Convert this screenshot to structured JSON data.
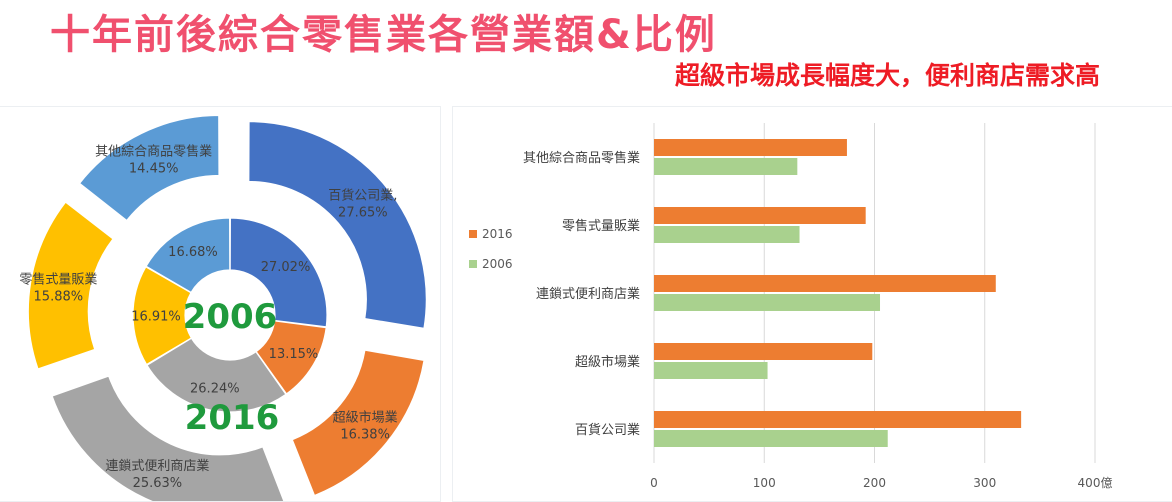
{
  "header": {
    "title": "十年前後綜合零售業各營業額&比例",
    "subtitle": "超級市場成長幅度大，便利商店需求高"
  },
  "chart_data": [
    {
      "type": "pie",
      "subtype": "double-donut",
      "inner_label": "2006",
      "outer_label": "2016",
      "rings": [
        {
          "name": "2006",
          "slices": [
            {
              "category": "百貨公司業",
              "percent": "27.02%",
              "value": 27.02,
              "color": "#4472c4"
            },
            {
              "category": "超級市場業",
              "percent": "13.15%",
              "value": 13.15,
              "color": "#ed7d31"
            },
            {
              "category": "連鎖式便利商店業",
              "percent": "26.24%",
              "value": 26.24,
              "color": "#a5a5a5"
            },
            {
              "category": "零售式量販業",
              "percent": "16.91%",
              "value": 16.91,
              "color": "#ffc000"
            },
            {
              "category": "其他綜合商品零售業",
              "percent": "16.68%",
              "value": 16.68,
              "color": "#5b9bd5"
            }
          ]
        },
        {
          "name": "2016",
          "slices": [
            {
              "category": "百貨公司業",
              "label": "百貨公司業,",
              "percent": "27.65%",
              "value": 27.65,
              "color": "#4472c4"
            },
            {
              "category": "超級市場業",
              "label": "超級市場業",
              "percent": "16.38%",
              "value": 16.38,
              "color": "#ed7d31"
            },
            {
              "category": "連鎖式便利商店業",
              "label": "連鎖式便利商店業",
              "percent": "25.63%",
              "value": 25.63,
              "color": "#a5a5a5"
            },
            {
              "category": "零售式量販業",
              "label": "零售式量販業",
              "percent": "15.88%",
              "value": 15.88,
              "color": "#ffc000"
            },
            {
              "category": "其他綜合商品零售業",
              "label": "其他綜合商品零售業",
              "percent": "14.45%",
              "value": 14.45,
              "color": "#5b9bd5"
            }
          ]
        }
      ]
    },
    {
      "type": "bar",
      "orientation": "horizontal",
      "categories": [
        "其他綜合商品零售業",
        "零售式量販業",
        "連鎖式便利商店業",
        "超級市場業",
        "百貨公司業"
      ],
      "series": [
        {
          "name": "2016",
          "color": "#ed7d31",
          "values": [
            175,
            192,
            310,
            198,
            333
          ]
        },
        {
          "name": "2006",
          "color": "#a9d18e",
          "values": [
            130,
            132,
            205,
            103,
            212
          ]
        }
      ],
      "x_ticks": [
        "0",
        "100",
        "200",
        "300",
        "400億"
      ],
      "xlim": [
        0,
        400
      ],
      "grid": true,
      "legend_position": "left"
    }
  ]
}
